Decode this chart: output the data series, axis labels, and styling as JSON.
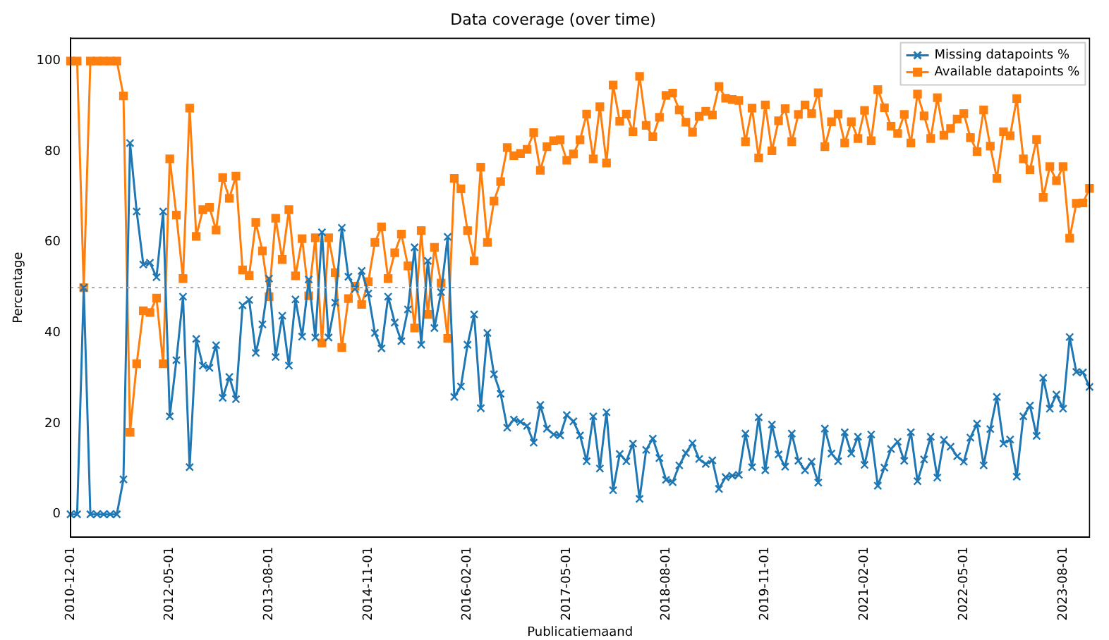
{
  "chart_data": {
    "type": "line",
    "title": "Data coverage (over time)",
    "xlabel": "Publicatiemaand",
    "ylabel": "Percentage",
    "categories": [
      "2010-12-01",
      null,
      null,
      null,
      null,
      null,
      null,
      null,
      null,
      null,
      null,
      null,
      null,
      null,
      null,
      "2012-05-01",
      null,
      null,
      null,
      null,
      null,
      null,
      null,
      null,
      null,
      null,
      null,
      null,
      null,
      null,
      "2013-08-01",
      null,
      null,
      null,
      null,
      null,
      null,
      null,
      null,
      null,
      null,
      null,
      null,
      null,
      null,
      "2014-11-01",
      null,
      null,
      null,
      null,
      null,
      null,
      null,
      null,
      null,
      null,
      null,
      null,
      null,
      null,
      "2016-02-01",
      null,
      null,
      null,
      null,
      null,
      null,
      null,
      null,
      null,
      null,
      null,
      null,
      null,
      null,
      "2017-05-01",
      null,
      null,
      null,
      null,
      null,
      null,
      null,
      null,
      null,
      null,
      null,
      null,
      null,
      null,
      "2018-08-01",
      null,
      null,
      null,
      null,
      null,
      null,
      null,
      null,
      null,
      null,
      null,
      null,
      null,
      null,
      "2019-11-01",
      null,
      null,
      null,
      null,
      null,
      null,
      null,
      null,
      null,
      null,
      null,
      null,
      null,
      null,
      "2021-02-01",
      null,
      null,
      null,
      null,
      null,
      null,
      null,
      null,
      null,
      null,
      null,
      null,
      null,
      null,
      "2022-05-01",
      null,
      null,
      null,
      null,
      null,
      null,
      null,
      null,
      null,
      null,
      null,
      null,
      null,
      null,
      "2023-08-01",
      null,
      null,
      null,
      null
    ],
    "series": [
      {
        "name": "Missing datapoints %",
        "color": "#1f77b4",
        "marker": "cross",
        "values": [
          0,
          0,
          50,
          0,
          0,
          0,
          0,
          0,
          7.7,
          81.9,
          66.8,
          55.1,
          55.5,
          52.3,
          66.8,
          21.6,
          34,
          48,
          10.4,
          38.7,
          32.8,
          32.3,
          37.3,
          25.7,
          30.3,
          25.4,
          46.1,
          47.3,
          35.6,
          41.9,
          52,
          34.7,
          43.8,
          32.8,
          47.4,
          39.2,
          51.8,
          39,
          62.2,
          39,
          46.7,
          63.2,
          52.4,
          49.7,
          53.7,
          48.7,
          40,
          36.6,
          48,
          42.3,
          38.2,
          45.2,
          58.9,
          37.4,
          55.9,
          41.1,
          49,
          61.2,
          25.9,
          28.2,
          37.4,
          44.1,
          23.4,
          40,
          30.9,
          26.6,
          19.1,
          20.9,
          20.4,
          19.5,
          15.8,
          24.1,
          18.9,
          17.6,
          17.4,
          21.9,
          20.5,
          17.4,
          11.7,
          21.6,
          10.1,
          22.5,
          5.3,
          13.3,
          11.7,
          15.6,
          3.4,
          14.2,
          16.7,
          12.4,
          7.6,
          7.1,
          10.8,
          13.5,
          15.7,
          12.2,
          11.1,
          11.9,
          5.6,
          8.2,
          8.5,
          8.7,
          17.8,
          10.4,
          21.4,
          9.7,
          19.8,
          13.2,
          10.5,
          17.8,
          11.8,
          9.7,
          11.6,
          7,
          18.9,
          13.4,
          11.7,
          18.1,
          13.4,
          17.1,
          10.9,
          17.6,
          6.3,
          10.3,
          14.4,
          16,
          11.8,
          18.1,
          7.3,
          12.1,
          17.1,
          8.1,
          16.4,
          14.9,
          12.8,
          11.6,
          16.9,
          20,
          10.8,
          18.8,
          25.9,
          15.6,
          16.5,
          8.3,
          21.6,
          24,
          17.3,
          30.1,
          23.3,
          26.4,
          23.3,
          39.1,
          31.4,
          31.3,
          28.1
        ]
      },
      {
        "name": "Available datapoints %",
        "color": "#ff7f0e",
        "marker": "square",
        "values": [
          100,
          100,
          50,
          100,
          100,
          100,
          100,
          100,
          92.3,
          18.1,
          33.2,
          44.9,
          44.5,
          47.7,
          33.2,
          78.4,
          66,
          52,
          89.6,
          61.3,
          67.2,
          67.7,
          62.7,
          74.3,
          69.7,
          74.6,
          53.9,
          52.7,
          64.4,
          58.1,
          48,
          65.3,
          56.2,
          67.2,
          52.6,
          60.8,
          48.2,
          61,
          37.8,
          61,
          53.3,
          36.8,
          47.6,
          50.3,
          46.3,
          51.3,
          60,
          63.4,
          52,
          57.7,
          61.8,
          54.8,
          41.1,
          62.6,
          44.1,
          58.9,
          51,
          38.8,
          74.1,
          71.8,
          62.6,
          55.9,
          76.6,
          60,
          69.1,
          73.4,
          80.9,
          79.1,
          79.6,
          80.5,
          84.2,
          75.9,
          81.1,
          82.4,
          82.6,
          78.1,
          79.5,
          82.6,
          88.3,
          78.4,
          89.9,
          77.5,
          94.7,
          86.7,
          88.3,
          84.4,
          96.6,
          85.8,
          83.3,
          87.6,
          92.4,
          92.9,
          89.2,
          86.5,
          84.3,
          87.8,
          88.9,
          88.1,
          94.4,
          91.8,
          91.5,
          91.3,
          82.2,
          89.6,
          78.6,
          90.3,
          80.2,
          86.8,
          89.5,
          82.2,
          88.2,
          90.3,
          88.4,
          93,
          81.1,
          86.6,
          88.3,
          81.9,
          86.6,
          82.9,
          89.1,
          82.4,
          93.7,
          89.7,
          85.6,
          84,
          88.2,
          81.9,
          92.7,
          87.9,
          82.9,
          91.9,
          83.6,
          85.1,
          87.2,
          88.4,
          83.1,
          80,
          89.2,
          81.2,
          74.1,
          84.4,
          83.5,
          91.7,
          78.4,
          76,
          82.7,
          69.9,
          76.7,
          73.6,
          76.7,
          60.9,
          68.6,
          68.7,
          71.9
        ]
      }
    ],
    "ylim": [
      -5,
      105
    ],
    "yticks": [
      0,
      20,
      40,
      60,
      80,
      100
    ],
    "ref_lines": [
      {
        "axis": "y",
        "value": 50,
        "color": "#aaaaaa",
        "line_style": "dotted"
      }
    ],
    "grid": false,
    "legend": "top right"
  }
}
